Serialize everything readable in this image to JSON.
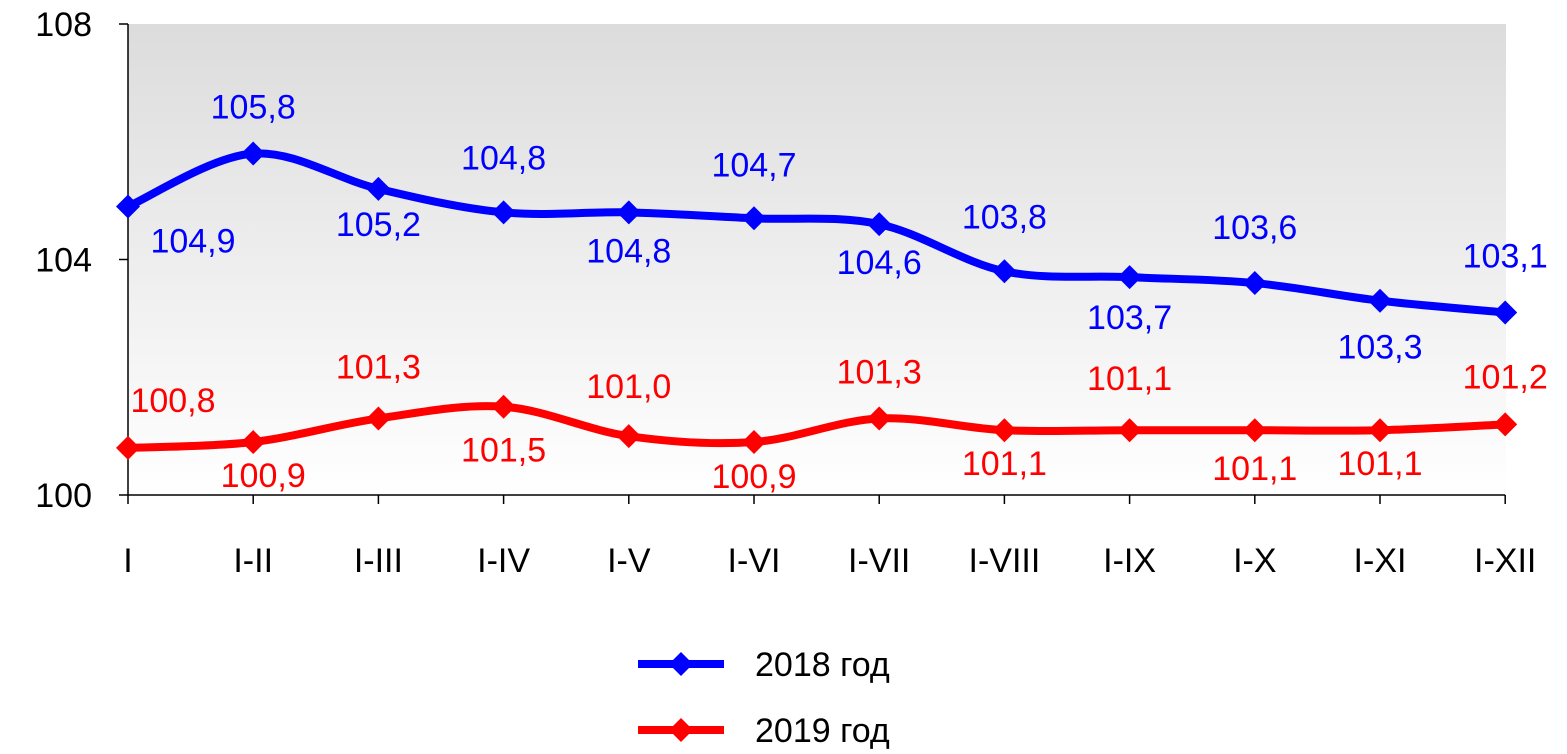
{
  "chart_data": {
    "type": "line",
    "title": "",
    "xlabel": "",
    "ylabel": "",
    "categories": [
      "I",
      "I-II",
      "I-III",
      "I-IV",
      "I-V",
      "I-VI",
      "I-VII",
      "I-VIII",
      "I-IX",
      "I-X",
      "I-XI",
      "I-XII"
    ],
    "ylim": [
      100,
      108
    ],
    "yticks": [
      100,
      104,
      108
    ],
    "yticklabels": [
      "100",
      "104",
      "108"
    ],
    "grid": false,
    "legend_position": "bottom-center",
    "series": [
      {
        "name": "2018 год",
        "color": "#0000ff",
        "marker": "diamond",
        "values": [
          104.9,
          105.8,
          105.2,
          104.8,
          104.8,
          104.7,
          104.6,
          103.8,
          103.7,
          103.6,
          103.3,
          103.1
        ],
        "labels": [
          "104,9",
          "105,8",
          "105,2",
          "104,8",
          "104,8",
          "104,7",
          "104,6",
          "103,8",
          "103,7",
          "103,6",
          "103,3",
          "103,1"
        ]
      },
      {
        "name": "2019 год",
        "color": "#ff0000",
        "marker": "diamond",
        "values": [
          100.8,
          100.9,
          101.3,
          101.5,
          101.0,
          100.9,
          101.3,
          101.1,
          101.1,
          101.1,
          101.1,
          101.2
        ],
        "labels": [
          "100,8",
          "100,9",
          "101,3",
          "101,5",
          "101,0",
          "100,9",
          "101,3",
          "101,1",
          "101,1",
          "101,1",
          "101,1",
          "101,2"
        ]
      }
    ]
  }
}
